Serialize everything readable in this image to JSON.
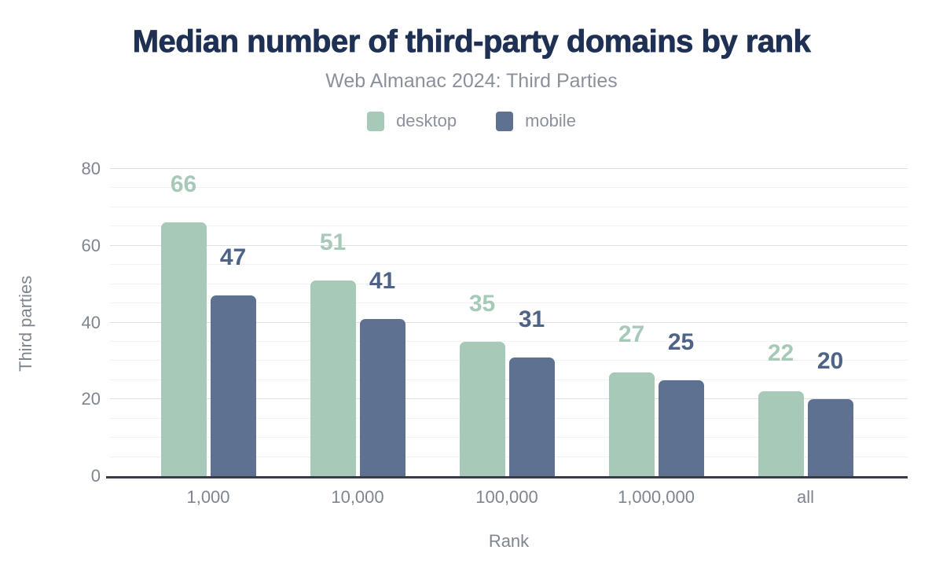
{
  "header": {
    "title": "Median number of third-party domains by rank",
    "subtitle": "Web Almanac 2024: Third Parties"
  },
  "legend": {
    "items": [
      {
        "label": "desktop",
        "color": "#a7c9b7"
      },
      {
        "label": "mobile",
        "color": "#5f7190"
      }
    ]
  },
  "chart_data": {
    "type": "bar",
    "title": "Median number of third-party domains by rank",
    "subtitle": "Web Almanac 2024: Third Parties",
    "categories": [
      "1,000",
      "10,000",
      "100,000",
      "1,000,000",
      "all"
    ],
    "series": [
      {
        "name": "desktop",
        "color": "#a7c9b7",
        "label_color": "#a7c9b7",
        "values": [
          66,
          51,
          35,
          27,
          22
        ]
      },
      {
        "name": "mobile",
        "color": "#5f7190",
        "label_color": "#4f6389",
        "values": [
          47,
          41,
          31,
          25,
          20
        ]
      }
    ],
    "xlabel": "Rank",
    "ylabel": "Third parties",
    "ylim": [
      0,
      80
    ],
    "yticks": [
      0,
      20,
      40,
      60,
      80
    ],
    "minor_tick_step": 5,
    "grid": true,
    "legend_position": "top",
    "value_labels": true
  },
  "colors": {
    "title_text": "#1e3054",
    "subtitle_text": "#8b919c",
    "axis_text": "#7e858f",
    "major_grid": "#dfe0e5",
    "minor_grid": "#f2f2f5",
    "baseline": "#363d47"
  }
}
